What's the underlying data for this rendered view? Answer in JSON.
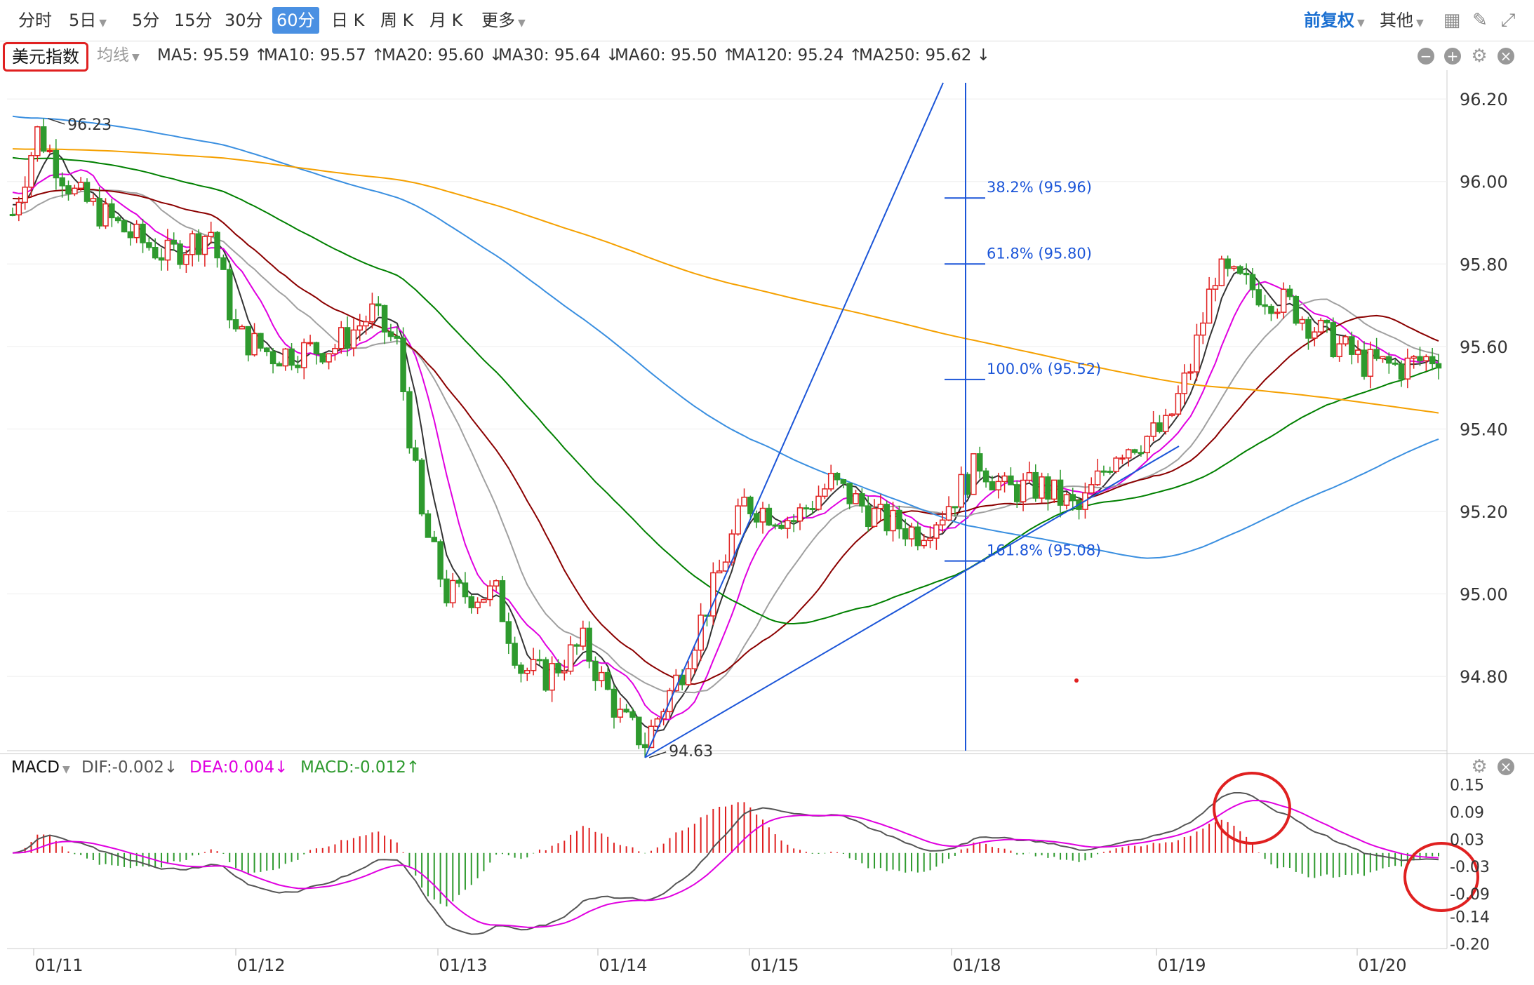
{
  "toolbar": {
    "periods": [
      "分时",
      "5日",
      "5分",
      "15分",
      "30分",
      "60分",
      "日 K",
      "周 K",
      "月 K",
      "更多"
    ],
    "active_period": "60分",
    "fuquan": "前复权",
    "other": "其他"
  },
  "indicator_bar": {
    "symbol": "美元指数",
    "avg_line": "均线",
    "ma": [
      {
        "label": "MA5: 95.59 ↑",
        "color": "#333333"
      },
      {
        "label": "MA10: 95.57 ↑",
        "color": "#e000e0"
      },
      {
        "label": "MA20: 95.60 ↓",
        "color": "#a0a0a0"
      },
      {
        "label": "MA30: 95.64 ↓",
        "color": "#8b0000"
      },
      {
        "label": "MA60: 95.50 ↑",
        "color": "#008000"
      },
      {
        "label": "MA120: 95.24 ↑",
        "color": "#3a8fe0"
      },
      {
        "label": "MA250: 95.62 ↓",
        "color": "#f5a000"
      }
    ]
  },
  "macd_bar": {
    "name": "MACD",
    "dif": "DIF:-0.002↓",
    "dea": "DEA:0.004↓",
    "macd": "MACD:-0.012↑"
  },
  "chart_data": {
    "type": "candlestick",
    "price_axis": {
      "ticks": [
        "96.20",
        "96.00",
        "95.80",
        "95.60",
        "95.40",
        "95.20",
        "95.00",
        "94.80"
      ],
      "range": [
        94.62,
        96.27
      ]
    },
    "macd_axis": {
      "ticks": [
        "0.15",
        "0.09",
        "0.03",
        "-0.03",
        "-0.09",
        "-0.14",
        "-0.20"
      ],
      "range": [
        -0.21,
        0.16
      ]
    },
    "x_labels": [
      "01/11",
      "01/12",
      "01/13",
      "01/14",
      "01/15",
      "01/18",
      "01/19",
      "01/20"
    ],
    "annotations": {
      "high": "96.23",
      "low": "94.63"
    },
    "fibonacci": [
      {
        "label": "38.2% (95.96)",
        "value": 95.96
      },
      {
        "label": "61.8% (95.80)",
        "value": 95.8
      },
      {
        "label": "100.0% (95.52)",
        "value": 95.52
      },
      {
        "label": "161.8% (95.08)",
        "value": 95.08
      }
    ],
    "colors": {
      "up": "#e02020",
      "down": "#2e9a2e",
      "fib": "#1b55d8"
    }
  }
}
